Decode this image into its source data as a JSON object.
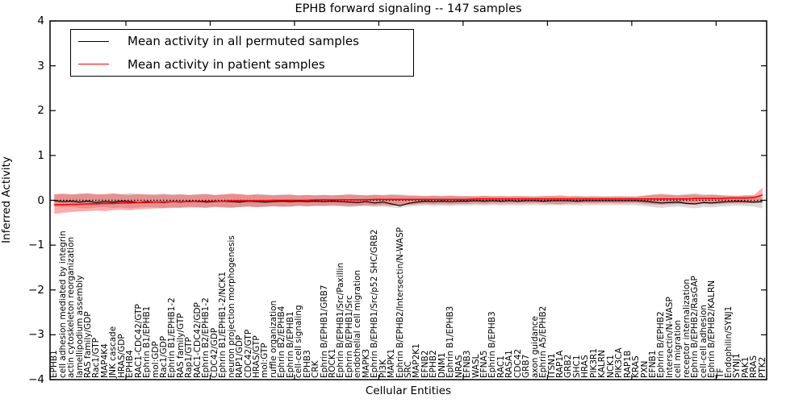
{
  "chart_data": {
    "type": "line",
    "title": "EPHB forward signaling -- 147 samples",
    "xlabel": "Cellular Entities",
    "ylabel": "Inferred Activity",
    "ylim": [
      -4,
      4
    ],
    "y_ticks": [
      4,
      3,
      2,
      1,
      0,
      -1,
      -2,
      -3,
      -4
    ],
    "y_tick_labels": [
      "4",
      "3",
      "2",
      "1",
      "0",
      "−1",
      "−2",
      "−3",
      "−4"
    ],
    "grid": false,
    "zero_line": true,
    "legend_position": "upper left",
    "categories": [
      "EPHB1",
      "cell adhesion mediated by integrin",
      "actin cytoskeleton reorganization",
      "lamellipodium assembly",
      "RAS family/GDP",
      "Rac1/GTP",
      "MAP4K4",
      "JNK cascade",
      "HRAS/GDP",
      "EPHB4",
      "RAC1-CDC42/GTP",
      "Ephrin B1/EPHB1",
      "mol:GDP",
      "Rac1/GDP",
      "Ephrin B1/EPHB1-2",
      "RAS family/GTP",
      "Rap1/GTP",
      "RAC1-CDC42/GDP",
      "Ephrin B2/EPHB1-2",
      "CDC42/GDP",
      "Ephrin B1/EPHB1-2/NCK1",
      "neuron projection morphogenesis",
      "RAP1/GDP",
      "CDC42/GTP",
      "HRAS/GTP",
      "mol:GTP",
      "ruffle organization",
      "Ephrin B2/EPHB4",
      "Ephrin B/EPHB1",
      "cell-cell signaling",
      "EPHB3",
      "CRK",
      "Ephrin B/EPHB1/GRB7",
      "ROCK1",
      "Ephrin B/EPHB1/Src/Paxillin",
      "Ephrin B/EPHB1/Src",
      "endothelial cell migration",
      "MAPK3",
      "Ephrin B/EPHB1/Src/p52 SHC/GRB2",
      "PI3K",
      "MAPK1",
      "Ephrin B/EPHB2/Intersectin/N-WASP",
      "SRC",
      "MAP2K1",
      "EFNB2",
      "EPHB2",
      "DNM1",
      "Ephrin B1/EPHB3",
      "NRAS",
      "EFNB3",
      "WASL",
      "EFNA5",
      "Ephrin B/EPHB3",
      "RAC1",
      "RASA1",
      "CDC42",
      "GRB7",
      "axon guidance",
      "Ephrin A5/EPHB2",
      "ITSN1",
      "RAP1A",
      "GRB2",
      "SHC1",
      "HRAS",
      "PIK3R1",
      "KALRN",
      "NCK1",
      "PIK3CA",
      "RAP1B",
      "KRAS",
      "PXN",
      "EFNB1",
      "Ephrin B/EPHB2",
      "Intersectin/N-WASP",
      "cell migration",
      "receptor internalization",
      "Ephrin B/EPHB2/RasGAP",
      "cell-cell adhesion",
      "Ephrin B/EPHB2/KALRN",
      "TF",
      "Endophilin/SYNJ1",
      "SYNJ1",
      "PAK1",
      "RRAS",
      "PTK2"
    ],
    "series": [
      {
        "name": "Mean activity in all permuted samples",
        "color": "#000000",
        "line_width": 1.2,
        "band_color": "rgba(0,0,0,0.15)",
        "values": [
          -0.01,
          -0.03,
          -0.02,
          -0.04,
          -0.02,
          -0.05,
          -0.03,
          -0.04,
          -0.02,
          -0.03,
          -0.05,
          -0.03,
          -0.04,
          -0.05,
          -0.03,
          -0.04,
          -0.02,
          -0.03,
          -0.04,
          -0.03,
          -0.02,
          -0.03,
          -0.04,
          -0.02,
          -0.03,
          -0.04,
          -0.03,
          -0.02,
          -0.03,
          -0.02,
          -0.03,
          -0.02,
          -0.03,
          -0.02,
          -0.03,
          -0.04,
          -0.05,
          -0.03,
          -0.06,
          -0.04,
          -0.08,
          -0.12,
          -0.07,
          -0.04,
          -0.02,
          -0.03,
          -0.02,
          -0.03,
          -0.02,
          -0.02,
          -0.01,
          -0.02,
          -0.01,
          -0.02,
          -0.01,
          -0.02,
          -0.01,
          -0.01,
          -0.02,
          -0.01,
          -0.01,
          -0.01,
          -0.02,
          -0.01,
          -0.01,
          -0.01,
          -0.01,
          -0.01,
          -0.01,
          -0.01,
          -0.02,
          -0.04,
          -0.06,
          -0.05,
          -0.04,
          -0.07,
          -0.08,
          -0.05,
          -0.06,
          -0.04,
          -0.03,
          -0.02,
          -0.03,
          -0.04,
          -0.03
        ],
        "band_hi": [
          0.12,
          0.14,
          0.13,
          0.15,
          0.16,
          0.14,
          0.13,
          0.15,
          0.14,
          0.16,
          0.14,
          0.13,
          0.14,
          0.15,
          0.13,
          0.14,
          0.12,
          0.13,
          0.14,
          0.12,
          0.13,
          0.14,
          0.13,
          0.12,
          0.14,
          0.13,
          0.12,
          0.13,
          0.12,
          0.11,
          0.12,
          0.11,
          0.12,
          0.11,
          0.12,
          0.13,
          0.12,
          0.11,
          0.13,
          0.12,
          0.14,
          0.13,
          0.12,
          0.11,
          0.1,
          0.11,
          0.1,
          0.11,
          0.1,
          0.1,
          0.09,
          0.1,
          0.09,
          0.1,
          0.09,
          0.1,
          0.09,
          0.09,
          0.1,
          0.09,
          0.09,
          0.09,
          0.1,
          0.09,
          0.09,
          0.09,
          0.09,
          0.09,
          0.09,
          0.09,
          0.11,
          0.13,
          0.15,
          0.13,
          0.12,
          0.14,
          0.16,
          0.13,
          0.14,
          0.12,
          0.11,
          0.1,
          0.11,
          0.1,
          0.08
        ],
        "band_lo": [
          -0.14,
          -0.16,
          -0.15,
          -0.17,
          -0.18,
          -0.16,
          -0.15,
          -0.17,
          -0.16,
          -0.18,
          -0.16,
          -0.15,
          -0.16,
          -0.17,
          -0.15,
          -0.16,
          -0.14,
          -0.15,
          -0.16,
          -0.14,
          -0.15,
          -0.16,
          -0.15,
          -0.14,
          -0.16,
          -0.15,
          -0.14,
          -0.15,
          -0.14,
          -0.13,
          -0.14,
          -0.13,
          -0.14,
          -0.13,
          -0.14,
          -0.15,
          -0.14,
          -0.13,
          -0.15,
          -0.14,
          -0.16,
          -0.17,
          -0.14,
          -0.13,
          -0.12,
          -0.13,
          -0.12,
          -0.13,
          -0.12,
          -0.12,
          -0.11,
          -0.12,
          -0.11,
          -0.12,
          -0.11,
          -0.12,
          -0.11,
          -0.11,
          -0.12,
          -0.11,
          -0.11,
          -0.11,
          -0.12,
          -0.11,
          -0.11,
          -0.11,
          -0.11,
          -0.11,
          -0.11,
          -0.11,
          -0.13,
          -0.15,
          -0.17,
          -0.15,
          -0.14,
          -0.16,
          -0.18,
          -0.15,
          -0.16,
          -0.14,
          -0.13,
          -0.12,
          -0.13,
          -0.14,
          -0.18
        ]
      },
      {
        "name": "Mean activity in patient samples",
        "color": "#ff0000",
        "line_width": 1.6,
        "band_color": "rgba(255,0,0,0.33)",
        "values": [
          -0.1,
          -0.1,
          -0.09,
          -0.09,
          -0.08,
          -0.08,
          -0.07,
          -0.07,
          -0.06,
          -0.06,
          -0.05,
          -0.05,
          -0.04,
          -0.04,
          -0.03,
          -0.03,
          -0.03,
          -0.02,
          -0.02,
          -0.02,
          -0.02,
          -0.01,
          -0.01,
          -0.01,
          -0.01,
          -0.01,
          0.0,
          0.0,
          0.0,
          0.0,
          0.0,
          0.01,
          0.01,
          0.01,
          0.01,
          0.01,
          0.01,
          0.01,
          0.02,
          0.02,
          0.02,
          0.02,
          0.02,
          0.02,
          0.02,
          0.02,
          0.02,
          0.02,
          0.02,
          0.02,
          0.03,
          0.03,
          0.03,
          0.03,
          0.03,
          0.03,
          0.03,
          0.03,
          0.03,
          0.03,
          0.03,
          0.03,
          0.03,
          0.03,
          0.03,
          0.03,
          0.03,
          0.03,
          0.03,
          0.03,
          0.03,
          0.03,
          0.03,
          0.03,
          0.03,
          0.03,
          0.04,
          0.04,
          0.04,
          0.04,
          0.05,
          0.05,
          0.05,
          0.06,
          0.12
        ],
        "band_hi": [
          0.14,
          0.15,
          0.13,
          0.14,
          0.15,
          0.13,
          0.14,
          0.15,
          0.13,
          0.12,
          0.14,
          0.13,
          0.12,
          0.13,
          0.12,
          0.13,
          0.12,
          0.13,
          0.14,
          0.12,
          0.13,
          0.15,
          0.14,
          0.12,
          0.13,
          0.12,
          0.11,
          0.12,
          0.13,
          0.11,
          0.12,
          0.11,
          0.12,
          0.11,
          0.12,
          0.13,
          0.12,
          0.11,
          0.12,
          0.11,
          0.12,
          0.11,
          0.1,
          0.1,
          0.09,
          0.1,
          0.09,
          0.1,
          0.09,
          0.09,
          0.09,
          0.1,
          0.09,
          0.09,
          0.09,
          0.09,
          0.09,
          0.08,
          0.09,
          0.1,
          0.11,
          0.09,
          0.09,
          0.08,
          0.09,
          0.08,
          0.08,
          0.09,
          0.08,
          0.08,
          0.1,
          0.12,
          0.13,
          0.12,
          0.11,
          0.12,
          0.13,
          0.11,
          0.12,
          0.11,
          0.1,
          0.1,
          0.11,
          0.12,
          0.28
        ],
        "band_lo": [
          -0.3,
          -0.28,
          -0.26,
          -0.25,
          -0.24,
          -0.23,
          -0.24,
          -0.22,
          -0.21,
          -0.22,
          -0.2,
          -0.19,
          -0.18,
          -0.18,
          -0.17,
          -0.17,
          -0.16,
          -0.16,
          -0.17,
          -0.15,
          -0.16,
          -0.17,
          -0.15,
          -0.14,
          -0.15,
          -0.14,
          -0.13,
          -0.14,
          -0.14,
          -0.12,
          -0.13,
          -0.12,
          -0.12,
          -0.11,
          -0.12,
          -0.13,
          -0.12,
          -0.11,
          -0.12,
          -0.11,
          -0.12,
          -0.11,
          -0.1,
          -0.09,
          -0.08,
          -0.09,
          -0.08,
          -0.09,
          -0.08,
          -0.08,
          -0.07,
          -0.08,
          -0.07,
          -0.07,
          -0.07,
          -0.07,
          -0.07,
          -0.06,
          -0.07,
          -0.08,
          -0.09,
          -0.07,
          -0.07,
          -0.06,
          -0.07,
          -0.06,
          -0.06,
          -0.07,
          -0.06,
          -0.06,
          -0.08,
          -0.09,
          -0.1,
          -0.09,
          -0.08,
          -0.09,
          -0.1,
          -0.08,
          -0.09,
          -0.08,
          -0.07,
          -0.07,
          -0.07,
          -0.06,
          -0.05
        ]
      }
    ]
  }
}
